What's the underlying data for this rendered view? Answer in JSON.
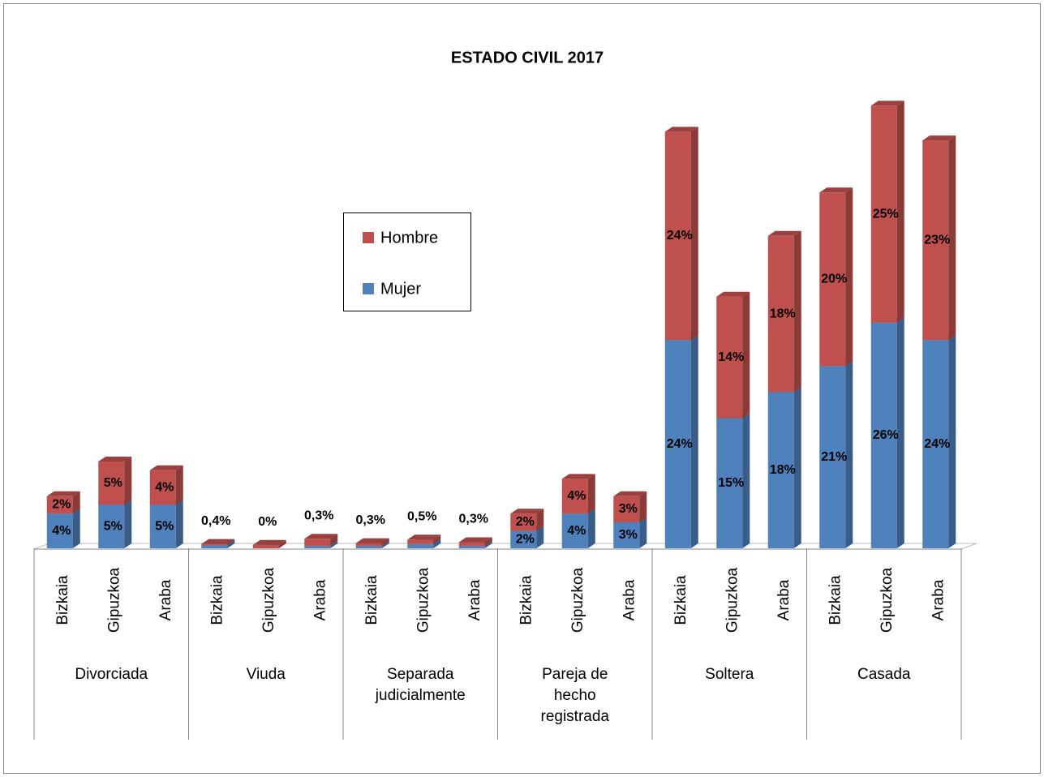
{
  "chart_data": {
    "type": "bar3d-stacked",
    "title": "ESTADO CIVIL   2017",
    "categories": [
      "Bizkaia",
      "Gipuzkoa",
      "Araba",
      "Bizkaia",
      "Gipuzkoa",
      "Araba",
      "Bizkaia",
      "Gipuzkoa",
      "Araba",
      "Bizkaia",
      "Gipuzkoa",
      "Araba",
      "Bizkaia",
      "Gipuzkoa",
      "Araba",
      "Bizkaia",
      "Gipuzkoa",
      "Araba"
    ],
    "groups": [
      "Divorciada",
      "Viuda",
      "Separada judicialmente",
      "Pareja de hecho registrada",
      "Soltera",
      "Casada"
    ],
    "series": [
      {
        "name": "Mujer",
        "color": "#4f81bd",
        "values": [
          4,
          5,
          5,
          0.4,
          0,
          0.3,
          0.3,
          0.5,
          0.3,
          2,
          4,
          3,
          24,
          15,
          18,
          21,
          26,
          24
        ],
        "value_labels": [
          "4%",
          "5%",
          "5%",
          "0,4%",
          "0%",
          "0,3%",
          "0,3%",
          "0,5%",
          "0,3%",
          "2%",
          "4%",
          "3%",
          "24%",
          "15%",
          "18%",
          "21%",
          "26%",
          "24%"
        ]
      },
      {
        "name": "Hombre",
        "color": "#c0504d",
        "values": [
          2,
          5,
          4,
          0.1,
          0.4,
          0.8,
          0.3,
          0.5,
          0.4,
          2,
          4,
          3,
          24,
          14,
          18,
          20,
          25,
          23
        ],
        "value_labels": [
          "2%",
          "5%",
          "4%",
          null,
          null,
          null,
          null,
          null,
          null,
          "2%",
          "4%",
          "3%",
          "24%",
          "14%",
          "18%",
          "20%",
          "25%",
          "23%"
        ]
      }
    ],
    "legend": "upper-left"
  }
}
